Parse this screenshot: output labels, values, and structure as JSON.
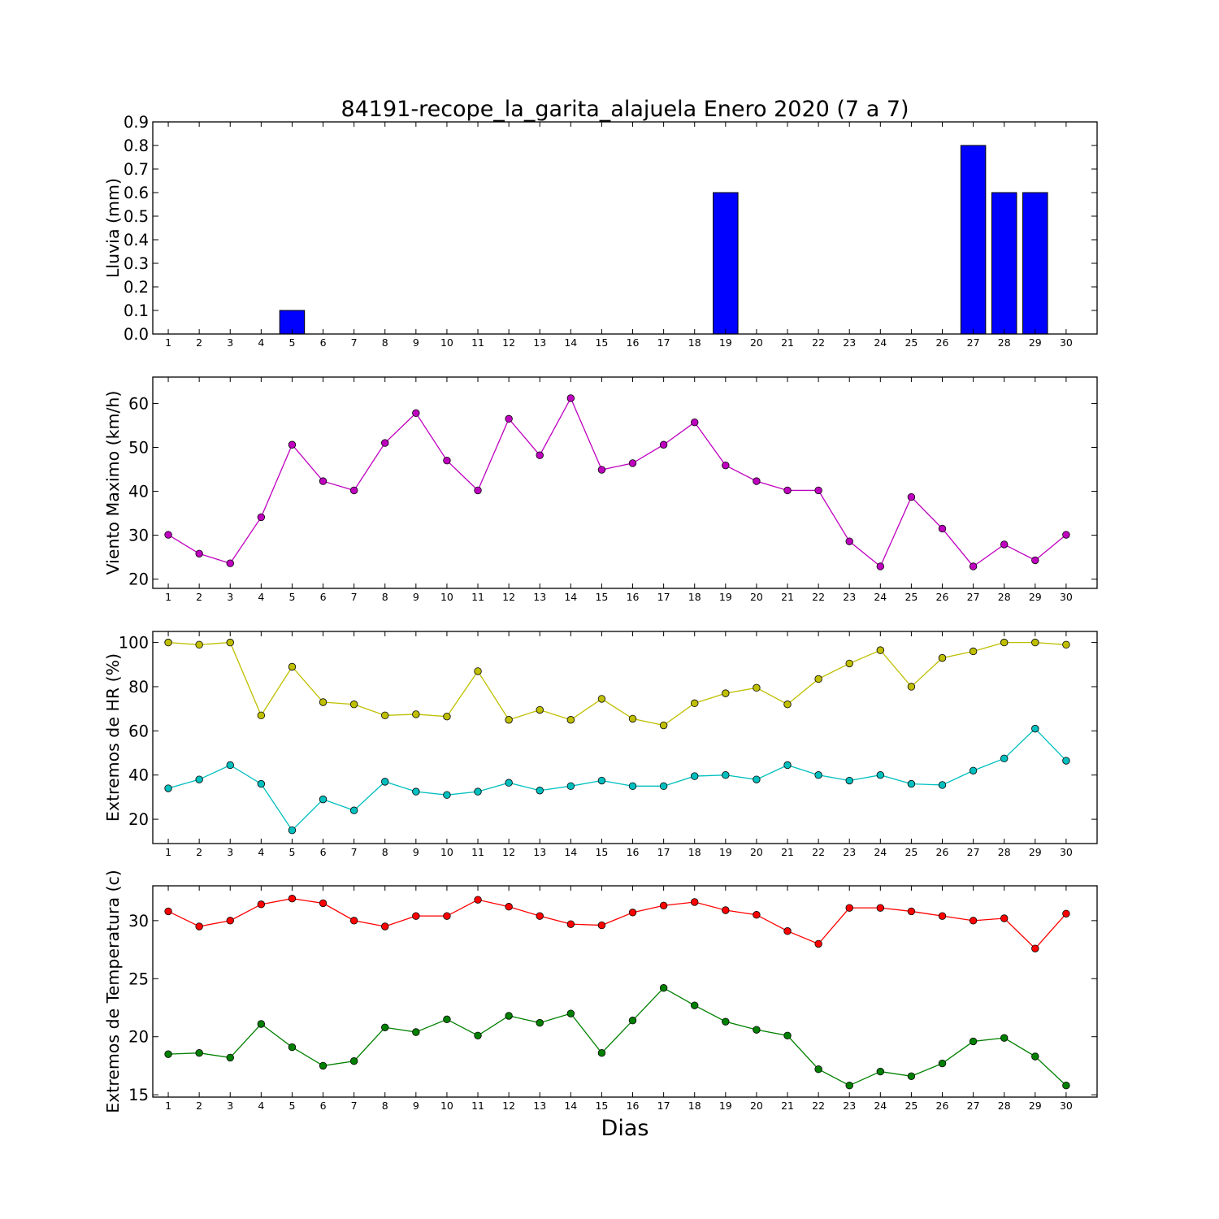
{
  "title": "84191-recope_la_garita_alajuela Enero 2020  (7 a 7)",
  "xlabel": "Dias",
  "days": [
    1,
    2,
    3,
    4,
    5,
    6,
    7,
    8,
    9,
    10,
    11,
    12,
    13,
    14,
    15,
    16,
    17,
    18,
    19,
    20,
    21,
    22,
    23,
    24,
    25,
    26,
    27,
    28,
    29,
    30
  ],
  "chart_data": [
    {
      "type": "bar",
      "ylabel": "Lluvia (mm)",
      "ylim": [
        0,
        0.9
      ],
      "yticks": [
        0.0,
        0.1,
        0.2,
        0.3,
        0.4,
        0.5,
        0.6,
        0.7,
        0.8,
        0.9
      ],
      "ytick_labels": [
        "0.0",
        "0.1",
        "0.2",
        "0.3",
        "0.4",
        "0.5",
        "0.6",
        "0.7",
        "0.8",
        "0.9"
      ],
      "series": [
        {
          "color": "#0000ff",
          "values": [
            0,
            0,
            0,
            0,
            0.1,
            0,
            0,
            0,
            0,
            0,
            0,
            0,
            0,
            0,
            0,
            0,
            0,
            0,
            0.6,
            0,
            0,
            0,
            0,
            0,
            0,
            0,
            0.8,
            0.6,
            0.6,
            0
          ]
        }
      ]
    },
    {
      "type": "line",
      "ylabel": "Viento Maximo (km/h)",
      "ylim": [
        17.9,
        66
      ],
      "yticks": [
        20,
        30,
        40,
        50,
        60
      ],
      "ytick_labels": [
        "20",
        "30",
        "40",
        "50",
        "60"
      ],
      "series": [
        {
          "color": "#bf00bf",
          "values": [
            30.1,
            25.8,
            23.6,
            34.1,
            50.6,
            42.3,
            40.2,
            51.0,
            57.8,
            47.0,
            40.2,
            56.5,
            48.2,
            61.2,
            44.9,
            46.4,
            50.6,
            55.7,
            45.9,
            42.3,
            40.2,
            40.2,
            28.6,
            22.9,
            38.7,
            31.5,
            22.9,
            27.9,
            24.3,
            30.1
          ]
        }
      ]
    },
    {
      "type": "line",
      "ylabel": "Extremos de HR (%)",
      "ylim": [
        9,
        105
      ],
      "yticks": [
        20,
        40,
        60,
        80,
        100
      ],
      "ytick_labels": [
        "20",
        "40",
        "60",
        "80",
        "100"
      ],
      "series": [
        {
          "color": "#bfbf00",
          "values": [
            100,
            99,
            100,
            67,
            89,
            73,
            72,
            67,
            67.5,
            66.5,
            87,
            65,
            69.5,
            65,
            74.5,
            65.5,
            62.5,
            72.5,
            77,
            79.5,
            72,
            83.5,
            90.5,
            96.5,
            80,
            93,
            96,
            100,
            100,
            99
          ]
        },
        {
          "color": "#00bfbf",
          "values": [
            34,
            38,
            44.5,
            36,
            15,
            29,
            24,
            37,
            32.5,
            31,
            32.5,
            36.5,
            33,
            35,
            37.5,
            35,
            35,
            39.5,
            40,
            38,
            44.5,
            40,
            37.5,
            40,
            36,
            35.5,
            42,
            47.5,
            61,
            46.5
          ]
        }
      ]
    },
    {
      "type": "line",
      "ylabel": "Extremos de Temperatura (c)",
      "ylim": [
        14.8,
        33
      ],
      "yticks": [
        15,
        20,
        25,
        30
      ],
      "ytick_labels": [
        "15",
        "20",
        "25",
        "30"
      ],
      "series": [
        {
          "color": "#ff0000",
          "values": [
            30.8,
            29.5,
            30.0,
            31.4,
            31.9,
            31.5,
            30.0,
            29.5,
            30.4,
            30.4,
            31.8,
            31.2,
            30.4,
            29.7,
            29.6,
            30.7,
            31.3,
            31.6,
            30.9,
            30.5,
            29.1,
            28.0,
            31.1,
            31.1,
            30.8,
            30.4,
            30.0,
            30.2,
            27.6,
            30.6
          ]
        },
        {
          "color": "#008000",
          "values": [
            18.5,
            18.6,
            18.2,
            21.1,
            19.1,
            17.5,
            17.9,
            20.8,
            20.4,
            21.5,
            20.1,
            21.8,
            21.2,
            22.0,
            18.6,
            21.4,
            24.2,
            22.7,
            21.3,
            20.6,
            20.1,
            17.2,
            15.8,
            17.0,
            16.6,
            17.7,
            19.6,
            19.9,
            18.3,
            15.8
          ]
        }
      ]
    }
  ]
}
